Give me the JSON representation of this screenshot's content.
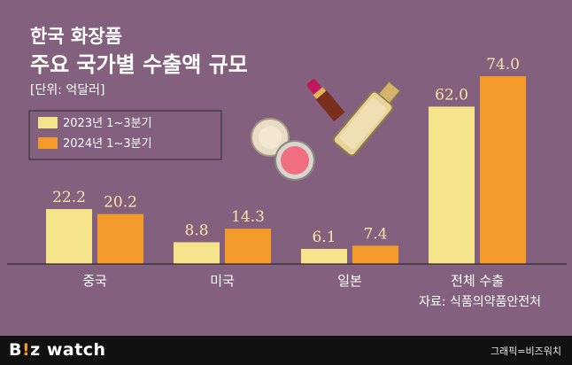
{
  "chart_data": {
    "type": "bar",
    "title": "한국 화장품",
    "subtitle": "주요 국가별 수출액 규모",
    "unit": "[단위: 억달러]",
    "categories": [
      "중국",
      "미국",
      "일본",
      "전체 수출"
    ],
    "series": [
      {
        "name": "2023년 1~3분기",
        "values": [
          22.2,
          8.8,
          6.1,
          62.0
        ],
        "labels": [
          "22.2",
          "8.8",
          "6.1",
          "62.0"
        ]
      },
      {
        "name": "2024년 1~3분기",
        "values": [
          20.2,
          14.3,
          7.4,
          74.0
        ],
        "labels": [
          "20.2",
          "14.3",
          "7.4",
          "74.0"
        ]
      }
    ],
    "source": "자료: 식품의약품안전처",
    "panels": "two scales: country panel (중국, 미국, 일본) and total panel (전체 수출)",
    "grid": false,
    "legend_position": "top-left"
  },
  "colors": {
    "background": "#84607f",
    "series_2023": "#f4e38a",
    "series_2024": "#f39a2b",
    "axis": "#2b2b2b",
    "title_text": "#ffffff",
    "value_text": "#fbe3a8",
    "footer": "#111111",
    "accent": "#f39a2b"
  },
  "footer": {
    "logo_text_1": "B",
    "logo_text_accent": "!",
    "logo_text_2": "z watch",
    "credit": "그래픽=비즈워치"
  },
  "decor": {
    "icons": [
      "lipstick-icon",
      "compact-powder-icon",
      "foundation-bottle-icon"
    ]
  }
}
